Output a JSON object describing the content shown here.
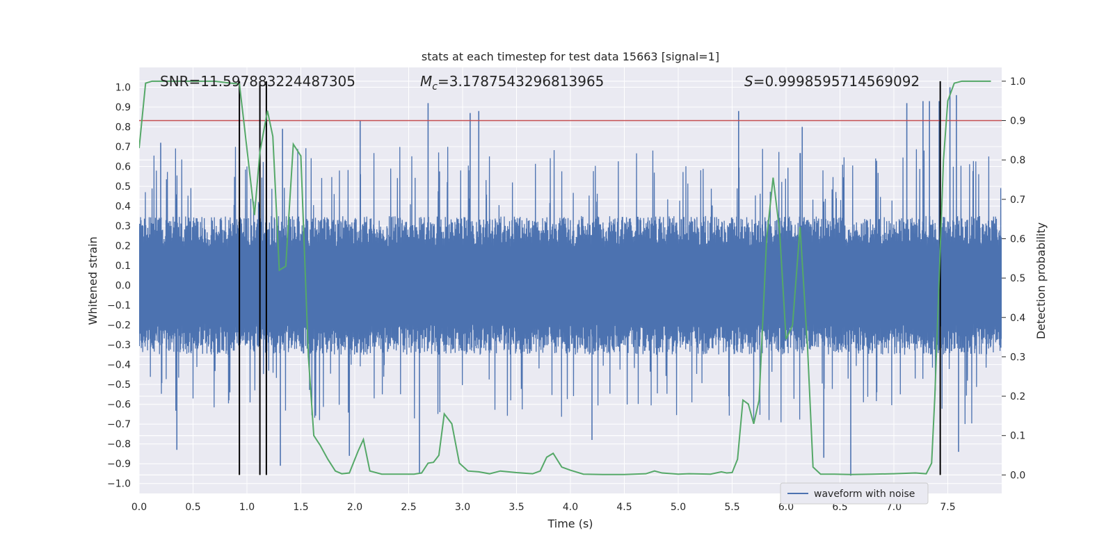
{
  "chart_data": {
    "type": "line",
    "title": "stats at each timestep for test data 15663 [signal=1]",
    "xlabel": "Time (s)",
    "ylabel": "Whitened strain",
    "y2label": "Detection probability",
    "xlim": [
      0.0,
      8.0
    ],
    "ylim": [
      -1.05,
      1.1
    ],
    "y2lim": [
      -0.047,
      1.035
    ],
    "x_ticks": [
      0.0,
      0.5,
      1.0,
      1.5,
      2.0,
      2.5,
      3.0,
      3.5,
      4.0,
      4.5,
      5.0,
      5.5,
      6.0,
      6.5,
      7.0,
      7.5
    ],
    "x_tick_labels": [
      "0.0",
      "0.5",
      "1.0",
      "1.5",
      "2.0",
      "2.5",
      "3.0",
      "3.5",
      "4.0",
      "4.5",
      "5.0",
      "5.5",
      "6.0",
      "6.5",
      "7.0",
      "7.5"
    ],
    "y_ticks": [
      1.0,
      0.9,
      0.8,
      0.7,
      0.6,
      0.5,
      0.4,
      0.3,
      0.2,
      0.1,
      0.0,
      -0.1,
      -0.2,
      -0.3,
      -0.4,
      -0.5,
      -0.6,
      -0.7,
      -0.8,
      -0.9,
      -1.0
    ],
    "y_tick_labels": [
      "1.0",
      "0.9",
      "0.8",
      "0.7",
      "0.6",
      "0.5",
      "0.4",
      "0.3",
      "0.2",
      "0.1",
      "0.0",
      "−0.1",
      "−0.2",
      "−0.3",
      "−0.4",
      "−0.5",
      "−0.6",
      "−0.7",
      "−0.8",
      "−0.9",
      "−1.0"
    ],
    "y2_ticks": [
      1.0,
      0.9,
      0.8,
      0.7,
      0.6,
      0.5,
      0.4,
      0.3,
      0.2,
      0.1,
      0.0
    ],
    "y2_tick_labels": [
      "1.0",
      "0.9",
      "0.8",
      "0.7",
      "0.6",
      "0.5",
      "0.4",
      "0.3",
      "0.2",
      "0.1",
      "0.0"
    ],
    "grid": true,
    "annotations": {
      "snr": "SNR=11.597883224487305",
      "mc_symbol": "M",
      "mc_sub": "c",
      "mc_value": "=3.1787543296813965",
      "s_symbol": "S",
      "s_value": "=0.9998595714569092"
    },
    "legend": {
      "placement": "lower-right",
      "entries": [
        "waveform with noise"
      ]
    },
    "colors": {
      "waveform": "#4c72b0",
      "probability": "#55a868",
      "threshold": "#c44e52",
      "markers": "#000000",
      "plot_bg": "#eaeaf2",
      "grid": "#ffffff"
    },
    "threshold": {
      "y2": 0.9
    },
    "marker_lines": {
      "x": [
        0.93,
        1.12,
        1.18,
        7.43
      ],
      "y2_range": [
        0.0,
        1.0
      ]
    },
    "waveform": {
      "name": "waveform with noise",
      "typical_band": [
        -0.35,
        0.35
      ],
      "peaks": [
        {
          "x": 2.05,
          "y": 0.83
        },
        {
          "x": 2.68,
          "y": 0.92
        },
        {
          "x": 3.07,
          "y": 0.87
        },
        {
          "x": 3.15,
          "y": 0.88
        },
        {
          "x": 5.56,
          "y": 0.88
        },
        {
          "x": 6.15,
          "y": 0.8
        },
        {
          "x": 7.12,
          "y": 0.92
        },
        {
          "x": 7.27,
          "y": 0.93
        },
        {
          "x": 7.33,
          "y": 0.93
        },
        {
          "x": 7.42,
          "y": 0.93
        },
        {
          "x": 7.52,
          "y": 1.0
        },
        {
          "x": 7.58,
          "y": 0.96
        },
        {
          "x": 0.2,
          "y": 0.72
        },
        {
          "x": 1.33,
          "y": 0.79
        },
        {
          "x": 0.35,
          "y": -0.83
        },
        {
          "x": 1.31,
          "y": -0.91
        },
        {
          "x": 1.95,
          "y": -0.86
        },
        {
          "x": 2.6,
          "y": -0.95
        },
        {
          "x": 4.2,
          "y": -0.78
        },
        {
          "x": 6.35,
          "y": -0.87
        },
        {
          "x": 6.6,
          "y": -0.96
        },
        {
          "x": 7.6,
          "y": -0.84
        }
      ]
    },
    "probability": {
      "x": [
        0.0,
        0.06,
        0.12,
        0.2,
        0.3,
        0.5,
        0.7,
        0.85,
        0.93,
        0.97,
        1.02,
        1.07,
        1.12,
        1.19,
        1.24,
        1.3,
        1.36,
        1.43,
        1.5,
        1.57,
        1.62,
        1.68,
        1.75,
        1.82,
        1.88,
        1.95,
        2.03,
        2.08,
        2.14,
        2.25,
        2.4,
        2.55,
        2.62,
        2.68,
        2.73,
        2.78,
        2.83,
        2.9,
        2.97,
        3.05,
        3.15,
        3.25,
        3.35,
        3.5,
        3.65,
        3.72,
        3.78,
        3.84,
        3.92,
        4.0,
        4.12,
        4.3,
        4.5,
        4.7,
        4.78,
        4.85,
        5.0,
        5.1,
        5.3,
        5.4,
        5.45,
        5.5,
        5.55,
        5.6,
        5.65,
        5.7,
        5.75,
        5.82,
        5.88,
        5.94,
        6.0,
        6.06,
        6.13,
        6.2,
        6.25,
        6.32,
        6.45,
        6.6,
        6.8,
        7.0,
        7.2,
        7.3,
        7.35,
        7.38,
        7.42,
        7.46,
        7.5,
        7.56,
        7.63,
        7.75,
        7.9
      ],
      "y": [
        0.83,
        0.995,
        1.0,
        1.0,
        1.0,
        1.0,
        1.0,
        0.995,
        0.993,
        0.9,
        0.78,
        0.66,
        0.82,
        0.925,
        0.86,
        0.52,
        0.53,
        0.84,
        0.81,
        0.3,
        0.1,
        0.075,
        0.04,
        0.01,
        0.003,
        0.005,
        0.06,
        0.09,
        0.01,
        0.002,
        0.002,
        0.002,
        0.005,
        0.03,
        0.032,
        0.05,
        0.155,
        0.13,
        0.03,
        0.01,
        0.008,
        0.003,
        0.01,
        0.006,
        0.003,
        0.01,
        0.045,
        0.055,
        0.02,
        0.012,
        0.002,
        0.001,
        0.001,
        0.003,
        0.01,
        0.005,
        0.002,
        0.003,
        0.002,
        0.008,
        0.005,
        0.006,
        0.04,
        0.19,
        0.18,
        0.13,
        0.19,
        0.6,
        0.755,
        0.62,
        0.345,
        0.38,
        0.63,
        0.32,
        0.02,
        0.002,
        0.002,
        0.001,
        0.002,
        0.003,
        0.005,
        0.003,
        0.03,
        0.2,
        0.5,
        0.8,
        0.95,
        0.995,
        1.0,
        1.0,
        1.0
      ]
    }
  }
}
